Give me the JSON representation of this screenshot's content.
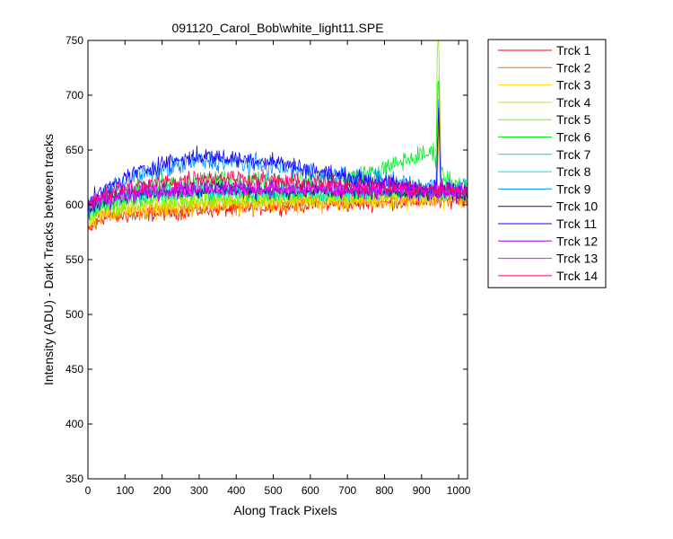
{
  "chart_data": {
    "type": "line",
    "title": "091120_Carol_Bob\\white_light11.SPE",
    "xlabel": "Along Track Pixels",
    "ylabel": "Intensity (ADU) - Dark Tracks between tracks",
    "xlim": [
      0,
      1024
    ],
    "ylim": [
      350,
      750
    ],
    "x_ticks": [
      "0",
      "100",
      "200",
      "300",
      "400",
      "500",
      "600",
      "700",
      "800",
      "900",
      "1000"
    ],
    "y_ticks": [
      "350",
      "400",
      "450",
      "500",
      "550",
      "600",
      "650",
      "700",
      "750"
    ],
    "grid": false,
    "legend_position": "outside-top-right",
    "series": [
      {
        "name": "Trck 1",
        "color": "#ff0000",
        "profile": [
          [
            0,
            575
          ],
          [
            40,
            588
          ],
          [
            100,
            590
          ],
          [
            200,
            592
          ],
          [
            300,
            595
          ],
          [
            400,
            596
          ],
          [
            500,
            598
          ],
          [
            600,
            600
          ],
          [
            700,
            600
          ],
          [
            800,
            602
          ],
          [
            900,
            603
          ],
          [
            1024,
            605
          ]
        ],
        "spikes": []
      },
      {
        "name": "Trck 2",
        "color": "#ff6a00",
        "profile": [
          [
            0,
            580
          ],
          [
            40,
            590
          ],
          [
            100,
            593
          ],
          [
            200,
            595
          ],
          [
            300,
            598
          ],
          [
            400,
            599
          ],
          [
            500,
            600
          ],
          [
            600,
            602
          ],
          [
            700,
            603
          ],
          [
            800,
            604
          ],
          [
            900,
            605
          ],
          [
            1024,
            606
          ]
        ],
        "spikes": [
          [
            948,
            712
          ]
        ]
      },
      {
        "name": "Trck 3",
        "color": "#ffd400",
        "profile": [
          [
            0,
            582
          ],
          [
            40,
            592
          ],
          [
            100,
            595
          ],
          [
            200,
            597
          ],
          [
            300,
            600
          ],
          [
            400,
            601
          ],
          [
            500,
            602
          ],
          [
            600,
            603
          ],
          [
            700,
            604
          ],
          [
            800,
            605
          ],
          [
            900,
            606
          ],
          [
            1024,
            607
          ]
        ],
        "spikes": []
      },
      {
        "name": "Trck 4",
        "color": "#c8e600",
        "profile": [
          [
            0,
            585
          ],
          [
            40,
            595
          ],
          [
            100,
            598
          ],
          [
            200,
            600
          ],
          [
            300,
            603
          ],
          [
            400,
            603
          ],
          [
            500,
            604
          ],
          [
            600,
            605
          ],
          [
            700,
            606
          ],
          [
            800,
            607
          ],
          [
            900,
            608
          ],
          [
            1024,
            608
          ]
        ],
        "spikes": []
      },
      {
        "name": "Trck 5",
        "color": "#66ff00",
        "profile": [
          [
            0,
            588
          ],
          [
            40,
            598
          ],
          [
            100,
            602
          ],
          [
            200,
            605
          ],
          [
            300,
            607
          ],
          [
            400,
            607
          ],
          [
            500,
            608
          ],
          [
            600,
            609
          ],
          [
            700,
            610
          ],
          [
            800,
            610
          ],
          [
            900,
            612
          ],
          [
            1024,
            612
          ]
        ],
        "spikes": [
          [
            944,
            740
          ],
          [
            946,
            705
          ]
        ]
      },
      {
        "name": "Trck 6",
        "color": "#00ee22",
        "profile": [
          [
            0,
            590
          ],
          [
            40,
            602
          ],
          [
            100,
            610
          ],
          [
            200,
            618
          ],
          [
            300,
            622
          ],
          [
            400,
            620
          ],
          [
            500,
            622
          ],
          [
            600,
            622
          ],
          [
            700,
            625
          ],
          [
            800,
            632
          ],
          [
            850,
            640
          ],
          [
            900,
            645
          ],
          [
            935,
            648
          ],
          [
            960,
            625
          ],
          [
            1024,
            615
          ]
        ],
        "spikes": [
          [
            945,
            725
          ]
        ]
      },
      {
        "name": "Trck 7",
        "color": "#00e090",
        "profile": [
          [
            0,
            592
          ],
          [
            40,
            600
          ],
          [
            100,
            605
          ],
          [
            200,
            608
          ],
          [
            300,
            610
          ],
          [
            400,
            610
          ],
          [
            500,
            610
          ],
          [
            600,
            610
          ],
          [
            700,
            610
          ],
          [
            800,
            610
          ],
          [
            900,
            610
          ],
          [
            1024,
            610
          ]
        ],
        "spikes": []
      },
      {
        "name": "Trck 8",
        "color": "#00e0e0",
        "profile": [
          [
            0,
            595
          ],
          [
            40,
            605
          ],
          [
            100,
            610
          ],
          [
            200,
            612
          ],
          [
            300,
            614
          ],
          [
            400,
            613
          ],
          [
            500,
            612
          ],
          [
            600,
            612
          ],
          [
            700,
            612
          ],
          [
            800,
            612
          ],
          [
            900,
            612
          ],
          [
            1024,
            612
          ]
        ],
        "spikes": []
      },
      {
        "name": "Trck 9",
        "color": "#0090ff",
        "profile": [
          [
            0,
            595
          ],
          [
            40,
            610
          ],
          [
            100,
            622
          ],
          [
            200,
            632
          ],
          [
            300,
            640
          ],
          [
            400,
            638
          ],
          [
            500,
            635
          ],
          [
            600,
            630
          ],
          [
            700,
            625
          ],
          [
            800,
            622
          ],
          [
            900,
            618
          ],
          [
            1024,
            615
          ]
        ],
        "spikes": [
          [
            946,
            695
          ]
        ]
      },
      {
        "name": "Trck 10",
        "color": "#001a80",
        "profile": [
          [
            0,
            595
          ],
          [
            40,
            605
          ],
          [
            100,
            610
          ],
          [
            200,
            612
          ],
          [
            300,
            614
          ],
          [
            400,
            614
          ],
          [
            500,
            613
          ],
          [
            600,
            612
          ],
          [
            700,
            612
          ],
          [
            800,
            612
          ],
          [
            900,
            611
          ],
          [
            1024,
            610
          ]
        ],
        "spikes": []
      },
      {
        "name": "Trck 11",
        "color": "#1a00ff",
        "profile": [
          [
            0,
            600
          ],
          [
            40,
            612
          ],
          [
            100,
            625
          ],
          [
            200,
            638
          ],
          [
            300,
            645
          ],
          [
            400,
            642
          ],
          [
            500,
            640
          ],
          [
            600,
            632
          ],
          [
            700,
            625
          ],
          [
            800,
            620
          ],
          [
            900,
            615
          ],
          [
            1024,
            612
          ]
        ],
        "spikes": [
          [
            946,
            690
          ]
        ]
      },
      {
        "name": "Trck 12",
        "color": "#a000e0",
        "profile": [
          [
            0,
            598
          ],
          [
            40,
            606
          ],
          [
            100,
            610
          ],
          [
            200,
            614
          ],
          [
            300,
            616
          ],
          [
            400,
            616
          ],
          [
            500,
            615
          ],
          [
            600,
            615
          ],
          [
            700,
            615
          ],
          [
            800,
            614
          ],
          [
            900,
            614
          ],
          [
            1024,
            612
          ]
        ],
        "spikes": []
      },
      {
        "name": "Trck 13",
        "color": "#ff00ff",
        "profile": [
          [
            0,
            598
          ],
          [
            40,
            606
          ],
          [
            100,
            610
          ],
          [
            200,
            612
          ],
          [
            300,
            615
          ],
          [
            400,
            614
          ],
          [
            500,
            614
          ],
          [
            600,
            614
          ],
          [
            700,
            613
          ],
          [
            800,
            613
          ],
          [
            900,
            612
          ],
          [
            1024,
            612
          ]
        ],
        "spikes": []
      },
      {
        "name": "Trck 14",
        "color": "#ff0066",
        "profile": [
          [
            0,
            600
          ],
          [
            40,
            610
          ],
          [
            100,
            615
          ],
          [
            200,
            620
          ],
          [
            300,
            625
          ],
          [
            400,
            625
          ],
          [
            500,
            622
          ],
          [
            600,
            620
          ],
          [
            700,
            618
          ],
          [
            800,
            616
          ],
          [
            900,
            614
          ],
          [
            1024,
            612
          ]
        ],
        "spikes": []
      }
    ]
  }
}
